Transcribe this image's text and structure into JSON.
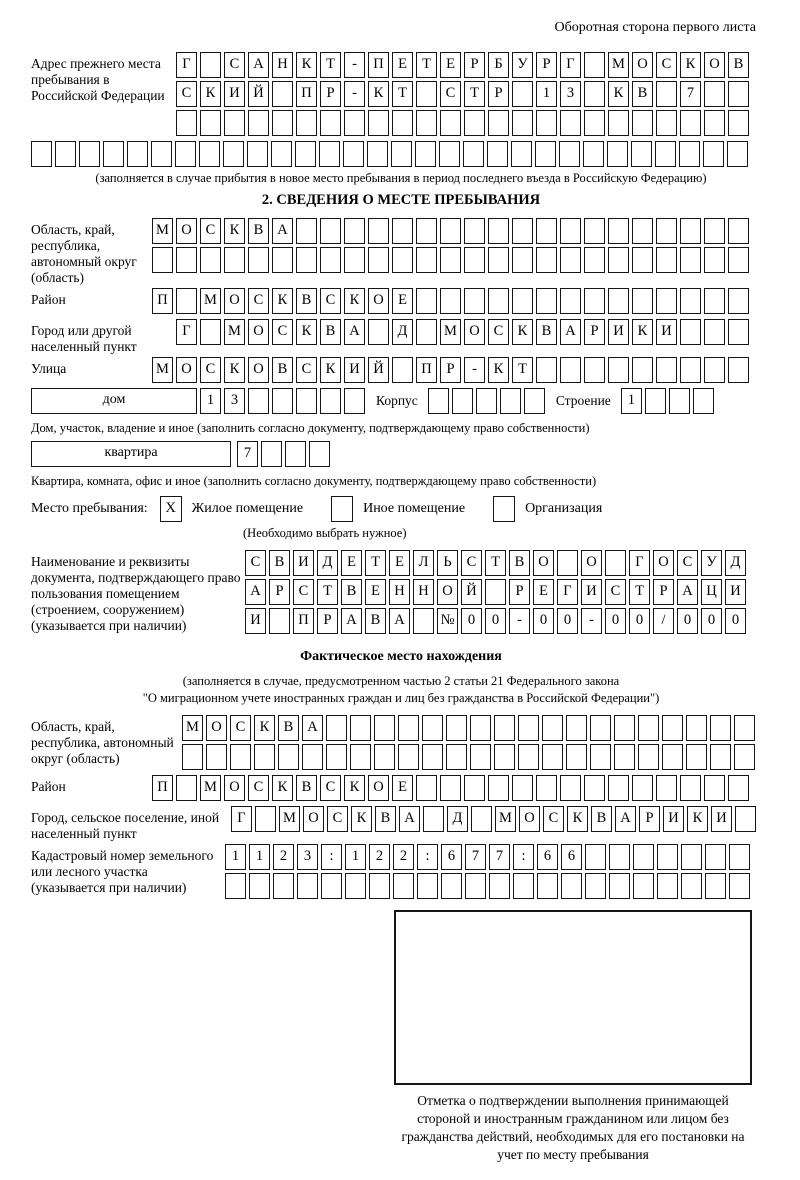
{
  "corner_note": "Оборотная сторона первого листа",
  "prev_address": {
    "label": "Адрес прежнего места пребывания в Российской Федерации",
    "rows": [
      {
        "text": "Г САНКТ-ПЕТЕРБУРГ МОСКОВ",
        "len": 24
      },
      {
        "text": "СКИЙ ПР-КТ СТР 13 КВ 7",
        "len": 24
      },
      {
        "text": "",
        "len": 24
      }
    ],
    "row_full": {
      "text": "",
      "len": 30
    },
    "note": "(заполняется в случае прибытия в новое место пребывания в период последнего въезда в Российскую Федерацию)"
  },
  "section2": {
    "title": "2. СВЕДЕНИЯ О МЕСТЕ ПРЕБЫВАНИЯ",
    "region": {
      "label": "Область, край, республика, автономный округ (область)",
      "rows": [
        {
          "text": "МОСКВА",
          "len": 25
        },
        {
          "text": "",
          "len": 25
        }
      ]
    },
    "district": {
      "label": "Район",
      "row": {
        "text": "П МОСКВСКОЕ",
        "len": 25
      }
    },
    "city": {
      "label": "Город или другой населенный пункт",
      "row": {
        "text": "Г МОСКВА Д МОСКВАРИКИ",
        "len": 24
      }
    },
    "street": {
      "label": "Улица",
      "row": {
        "text": "МОСКОВСКИЙ ПР-КТ",
        "len": 25
      }
    },
    "house": {
      "box_label": "дом",
      "number": {
        "text": "13",
        "len": 7
      },
      "korpus_label": "Корпус",
      "korpus": {
        "text": "",
        "len": 5
      },
      "stroenie_label": "Строение",
      "stroenie": {
        "text": "1",
        "len": 4
      },
      "note": "Дом, участок, владение и иное (заполнить согласно документу, подтверждающему право собственности)"
    },
    "apartment": {
      "box_label": "квартира",
      "number": {
        "text": "7",
        "len": 4
      },
      "note": "Квартира, комната, офис и иное (заполнить согласно документу, подтверждающему право собственности)"
    },
    "stay": {
      "label": "Место пребывания:",
      "options": [
        {
          "label": "Жилое помещение",
          "mark": "X"
        },
        {
          "label": "Иное помещение",
          "mark": ""
        },
        {
          "label": "Организация",
          "mark": ""
        }
      ],
      "note": "(Необходимо выбрать нужное)"
    },
    "document": {
      "label": "Наименование и реквизиты документа, подтверждающего право пользования помещением (строением, сооружением) (указывается при наличии)",
      "rows": [
        {
          "text": "СВИДЕТЕЛЬСТВО О ГОСУД",
          "len": 21
        },
        {
          "text": "АРСТВЕННОЙ РЕГИСТРАЦИ",
          "len": 21
        },
        {
          "text": "И ПРАВА №00-00-00/000",
          "len": 21
        }
      ]
    }
  },
  "actual_location": {
    "title": "Фактическое место нахождения",
    "note_line1": "(заполняется в случае, предусмотренном частью 2 статьи 21 Федерального закона",
    "note_line2": "\"О миграционном учете иностранных граждан и лиц без гражданства в Российской Федерации\")",
    "region": {
      "label": "Область, край, республика, автономный округ (область)",
      "rows": [
        {
          "text": "МОСКВА",
          "len": 24
        },
        {
          "text": "",
          "len": 24
        }
      ]
    },
    "district": {
      "label": "Район",
      "row": {
        "text": "П МОСКВСКОЕ",
        "len": 25
      }
    },
    "city": {
      "label": "Город, сельское поселение, иной населенный пункт",
      "row": {
        "text": "Г МОСКВА Д МОСКВАРИКИ",
        "len": 22
      }
    },
    "cadastre": {
      "label": "Кадастровый номер земельного или лесного участка (указывается при наличии)",
      "rows": [
        {
          "text": "1123:122:677:66",
          "len": 22
        },
        {
          "text": "",
          "len": 22
        }
      ]
    },
    "stamp_caption": "Отметка о подтверждении выполнения принимающей стороной и иностранным гражданином или лицом без гражданства действий, необходимых для его постановки на учет по месту пребывания"
  }
}
